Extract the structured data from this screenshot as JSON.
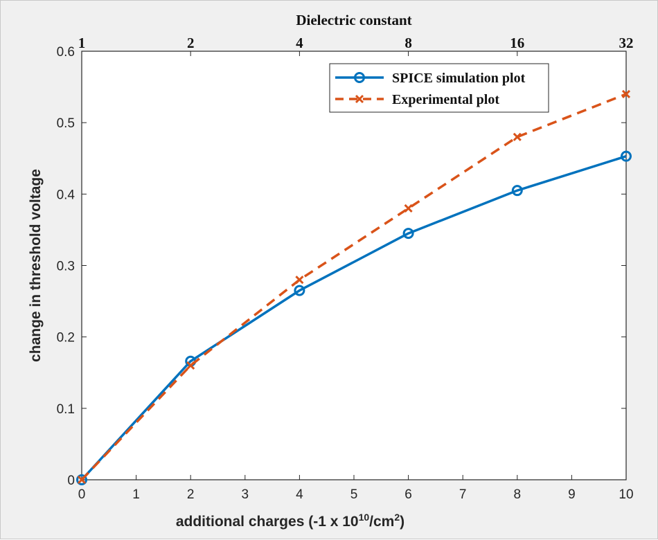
{
  "chart_data": {
    "type": "line",
    "title": "",
    "xlabel": "additional charges (-1 x 10",
    "xlabel_exp": "10",
    "xlabel_unit": "/cm",
    "xlabel_unit_exp": "2",
    "xlabel_close": ")",
    "ylabel": "change in threshold voltage",
    "top_axis_label": "Dielectric constant",
    "xlim": [
      0,
      10
    ],
    "ylim": [
      0,
      0.6
    ],
    "xticks": [
      "0",
      "1",
      "2",
      "3",
      "4",
      "5",
      "6",
      "7",
      "8",
      "9",
      "10"
    ],
    "yticks": [
      "0",
      "0.1",
      "0.2",
      "0.3",
      "0.4",
      "0.5",
      "0.6"
    ],
    "top_ticks": [
      {
        "x": 0,
        "label": "1"
      },
      {
        "x": 2,
        "label": "2"
      },
      {
        "x": 4,
        "label": "4"
      },
      {
        "x": 6,
        "label": "8"
      },
      {
        "x": 8,
        "label": "16"
      },
      {
        "x": 10,
        "label": "32"
      }
    ],
    "legend_position": "top-right",
    "grid": false,
    "series": [
      {
        "name": "SPICE simulation plot",
        "color": "#0072bd",
        "line": "solid",
        "marker": "circle",
        "x": [
          0,
          2,
          4,
          6,
          8,
          10
        ],
        "y": [
          0,
          0.166,
          0.265,
          0.345,
          0.405,
          0.453
        ]
      },
      {
        "name": "Experimental plot",
        "color": "#d95319",
        "line": "dashed",
        "marker": "x",
        "x": [
          0,
          2,
          4,
          6,
          8,
          10
        ],
        "y": [
          0,
          0.16,
          0.28,
          0.38,
          0.48,
          0.54
        ]
      }
    ]
  }
}
